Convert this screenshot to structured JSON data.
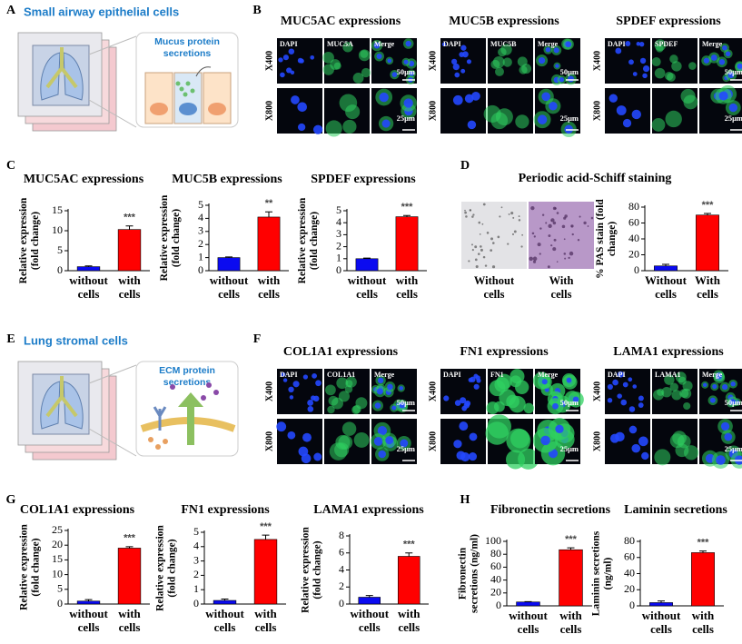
{
  "panel_labels": [
    "A",
    "B",
    "C",
    "D",
    "E",
    "F",
    "G",
    "H"
  ],
  "diagrams": [
    {
      "title": "Small airway epithelial cells",
      "callout": "Mucus protein secretions"
    },
    {
      "title": "Lung stromal cells",
      "callout": "ECM protein secretions"
    }
  ],
  "micrographs": [
    {
      "title": "MUC5AC expressions",
      "channels": [
        "DAPI",
        "MUC5A",
        "Merge"
      ],
      "rows": [
        "X400",
        "X800"
      ],
      "scale_bars": [
        "50μm",
        "25μm"
      ]
    },
    {
      "title": "MUC5B expressions",
      "channels": [
        "DAPI",
        "MUC5B",
        "Merge"
      ],
      "rows": [
        "X400",
        "X800"
      ],
      "scale_bars": [
        "50μm",
        "25μm"
      ]
    },
    {
      "title": "SPDEF expressions",
      "channels": [
        "DAPI",
        "SPDEF",
        "Merge"
      ],
      "rows": [
        "X400",
        "X800"
      ],
      "scale_bars": [
        "50μm",
        "25μm"
      ]
    },
    {
      "title": "COL1A1 expressions",
      "channels": [
        "DAPI",
        "COL1A1",
        "Merge"
      ],
      "rows": [
        "X400",
        "X800"
      ],
      "scale_bars": [
        "50μm",
        "25μm"
      ]
    },
    {
      "title": "FN1 expressions",
      "channels": [
        "DAPI",
        "FN1",
        "Merge"
      ],
      "rows": [
        "X400",
        "X800"
      ],
      "scale_bars": [
        "50μm",
        "25μm"
      ]
    },
    {
      "title": "LAMA1 expressions",
      "channels": [
        "DAPI",
        "LAMA1",
        "Merge"
      ],
      "rows": [
        "X400",
        "X800"
      ],
      "scale_bars": [
        "50μm",
        "25μm"
      ]
    }
  ],
  "pas": {
    "title": "Periodic acid-Schiff staining",
    "images": [
      "Without cells",
      "With cells"
    ]
  },
  "chart_data": [
    {
      "type": "bar",
      "title": "MUC5AC expressions",
      "ylabel": "Relative expression (fold change)",
      "categories": [
        "without cells",
        "with cells"
      ],
      "values": [
        1,
        10.3
      ],
      "errors": [
        0.2,
        0.9
      ],
      "colors": [
        "#0b0bf0",
        "#ff0000"
      ],
      "annotation": "***",
      "ylim": [
        0,
        15
      ],
      "yticks": [
        0,
        5,
        10,
        15
      ]
    },
    {
      "type": "bar",
      "title": "MUC5B expressions",
      "ylabel": "Relative expression (fold change)",
      "categories": [
        "without cells",
        "with cells"
      ],
      "values": [
        1,
        4.1
      ],
      "errors": [
        0.05,
        0.4
      ],
      "colors": [
        "#0b0bf0",
        "#ff0000"
      ],
      "annotation": "**",
      "ylim": [
        0,
        5
      ],
      "yticks": [
        0,
        1,
        2,
        3,
        4,
        5
      ]
    },
    {
      "type": "bar",
      "title": "SPDEF  expressions",
      "ylabel": "Relative expression (fold change)",
      "categories": [
        "without cells",
        "with cells"
      ],
      "values": [
        1,
        4.5
      ],
      "errors": [
        0.05,
        0.1
      ],
      "colors": [
        "#0b0bf0",
        "#ff0000"
      ],
      "annotation": "***",
      "ylim": [
        0,
        5
      ],
      "yticks": [
        0,
        1,
        2,
        3,
        4,
        5
      ]
    },
    {
      "type": "bar",
      "ylabel": "% PAS stain (fold change)",
      "categories": [
        "Without cells",
        "With cells"
      ],
      "values": [
        6,
        70
      ],
      "errors": [
        2,
        2
      ],
      "colors": [
        "#0b0bf0",
        "#ff0000"
      ],
      "annotation": "***",
      "ylim": [
        0,
        80
      ],
      "yticks": [
        0,
        20,
        40,
        60,
        80
      ]
    },
    {
      "type": "bar",
      "title": "COL1A1 expressions",
      "ylabel": "Relative expression (fold change)",
      "categories": [
        "without cells",
        "with cells"
      ],
      "values": [
        1,
        19
      ],
      "errors": [
        0.5,
        0.5
      ],
      "colors": [
        "#0b0bf0",
        "#ff0000"
      ],
      "annotation": "***",
      "ylim": [
        0,
        25
      ],
      "yticks": [
        0,
        5,
        10,
        15,
        20,
        25
      ]
    },
    {
      "type": "bar",
      "title": "FN1 expressions",
      "ylabel": "Relative expression (fold change)",
      "categories": [
        "without cells",
        "with cells"
      ],
      "values": [
        0.25,
        4.5
      ],
      "errors": [
        0.1,
        0.3
      ],
      "colors": [
        "#0b0bf0",
        "#ff0000"
      ],
      "annotation": "***",
      "ylim": [
        0,
        5
      ],
      "yticks": [
        0,
        1,
        2,
        3,
        4,
        5
      ]
    },
    {
      "type": "bar",
      "title": "LAMA1 expressions",
      "ylabel": "Relative expression (fold change)",
      "categories": [
        "without cells",
        "with cells"
      ],
      "values": [
        0.8,
        5.6
      ],
      "errors": [
        0.2,
        0.4
      ],
      "colors": [
        "#0b0bf0",
        "#ff0000"
      ],
      "annotation": "***",
      "ylim": [
        0,
        8
      ],
      "yticks": [
        0,
        2,
        4,
        6,
        8
      ]
    },
    {
      "type": "bar",
      "title": "Fibronectin secretions",
      "ylabel": "Fibronectin secretions (ng/ml)",
      "categories": [
        "without cells",
        "with cells"
      ],
      "values": [
        6,
        87
      ],
      "errors": [
        0.5,
        3
      ],
      "colors": [
        "#0b0bf0",
        "#ff0000"
      ],
      "annotation": "***",
      "ylim": [
        0,
        100
      ],
      "yticks": [
        0,
        20,
        40,
        60,
        80,
        100
      ]
    },
    {
      "type": "bar",
      "title": "Laminin secretions",
      "ylabel": "Laminin secretions (ng/ml)",
      "categories": [
        "without cells",
        "with cells"
      ],
      "values": [
        4,
        66
      ],
      "errors": [
        2,
        2
      ],
      "colors": [
        "#0b0bf0",
        "#ff0000"
      ],
      "annotation": "***",
      "ylim": [
        0,
        80
      ],
      "yticks": [
        0,
        20,
        40,
        60,
        80
      ]
    }
  ]
}
